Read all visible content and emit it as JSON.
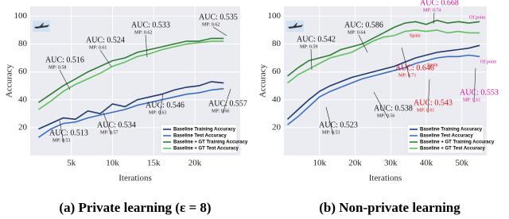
{
  "chart_data": [
    {
      "type": "line",
      "caption": "(a) Private learning (ε = 8)",
      "xlabel": "Iterations",
      "ylabel": "Accuracy",
      "xlim": [
        0,
        25500
      ],
      "ylim": [
        0,
        107
      ],
      "xticks": [
        {
          "value": 5000,
          "label": "5k"
        },
        {
          "value": 10000,
          "label": "10k"
        },
        {
          "value": 15000,
          "label": "15k"
        },
        {
          "value": 20000,
          "label": "20k"
        }
      ],
      "yticks": [
        20,
        40,
        60,
        80,
        100
      ],
      "grid": true,
      "legend": "lower right",
      "x": [
        1000,
        2500,
        4000,
        5500,
        7000,
        8500,
        10000,
        11500,
        13000,
        14500,
        16000,
        17500,
        19000,
        20500,
        22000,
        23500
      ],
      "series": [
        {
          "name": "Baseline Training Accuracy",
          "color": "#1f3a6e",
          "values": [
            19,
            23,
            27,
            26,
            32,
            30,
            37,
            35,
            40,
            42,
            44,
            47,
            49,
            50,
            53,
            52
          ]
        },
        {
          "name": "Baseline Test Accuracy",
          "color": "#3a6fc0",
          "values": [
            13,
            19,
            23,
            24,
            27,
            29,
            31,
            33,
            36,
            38,
            40,
            42,
            44,
            45,
            47,
            48
          ]
        },
        {
          "name": "Baseline + GT Training Accuracy",
          "color": "#2e7d32",
          "values": [
            38,
            44,
            50,
            55,
            60,
            64,
            68,
            70,
            74,
            76,
            78,
            80,
            82,
            82,
            84,
            84
          ]
        },
        {
          "name": "Baseline + GT Test Accuracy",
          "color": "#5fbf5f",
          "values": [
            33,
            39,
            46,
            51,
            55,
            59,
            64,
            67,
            71,
            73,
            76,
            78,
            80,
            81,
            82,
            82
          ]
        }
      ],
      "annotations": [
        {
          "text": "AUC: 0.516",
          "sub": "MP: 0.58",
          "color": "#111111"
        },
        {
          "text": "AUC: 0.524",
          "sub": "MP: 0.61",
          "color": "#111111"
        },
        {
          "text": "AUC: 0.533",
          "sub": "MP: 0.62",
          "color": "#111111"
        },
        {
          "text": "AUC: 0.535",
          "sub": "MP: 0.62",
          "color": "#111111"
        },
        {
          "text": "AUC: 0.513",
          "sub": "MP: 0.53",
          "color": "#111111"
        },
        {
          "text": "AUC: 0.534",
          "sub": "MP: 0.57",
          "color": "#111111"
        },
        {
          "text": "AUC: 0.546",
          "sub": "MP: 0.63",
          "color": "#111111"
        },
        {
          "text": "AUC: 0.557",
          "sub": "MP: 0.66",
          "color": "#111111"
        }
      ],
      "notes": []
    },
    {
      "type": "line",
      "caption": "(b) Non-private learning",
      "xlabel": "Iterations",
      "ylabel": "Accuracy",
      "xlim": [
        0,
        57000
      ],
      "ylim": [
        0,
        107
      ],
      "xticks": [
        {
          "value": 10000,
          "label": "10k"
        },
        {
          "value": 20000,
          "label": "20k"
        },
        {
          "value": 30000,
          "label": "30k"
        },
        {
          "value": 40000,
          "label": "40k"
        },
        {
          "value": 50000,
          "label": "50k"
        }
      ],
      "yticks": [
        20,
        40,
        60,
        80,
        100
      ],
      "grid": true,
      "legend": "lower right",
      "x": [
        1000,
        4000,
        7000,
        10000,
        13000,
        16000,
        19000,
        22000,
        25000,
        28000,
        31000,
        34000,
        37000,
        40000,
        43000,
        46000,
        49000,
        52000,
        55000
      ],
      "series": [
        {
          "name": "Baseline Training Accuracy",
          "color": "#1f3a6e",
          "values": [
            26,
            33,
            40,
            46,
            50,
            53,
            56,
            58,
            60,
            62,
            64,
            67,
            70,
            72,
            74,
            75,
            76,
            77,
            79
          ]
        },
        {
          "name": "Baseline Test Accuracy",
          "color": "#3a6fc0",
          "values": [
            22,
            28,
            35,
            42,
            46,
            49,
            52,
            55,
            57,
            59,
            61,
            63,
            66,
            68,
            70,
            71,
            71,
            72,
            71
          ]
        },
        {
          "name": "Baseline + GT Training Accuracy",
          "color": "#2e7d32",
          "values": [
            57,
            63,
            68,
            70,
            72,
            76,
            78,
            80,
            84,
            88,
            92,
            95,
            96,
            94,
            97,
            95,
            96,
            95,
            96
          ]
        },
        {
          "name": "Baseline + GT Test Accuracy",
          "color": "#5fbf5f",
          "values": [
            52,
            58,
            62,
            66,
            70,
            72,
            74,
            78,
            82,
            85,
            86,
            89,
            90,
            89,
            90,
            88,
            89,
            88,
            88
          ]
        }
      ],
      "annotations": [
        {
          "text": "AUC: 0.542",
          "sub": "MP: 0.59",
          "color": "#111111"
        },
        {
          "text": "AUC: 0.586",
          "sub": "MP: 0.64",
          "color": "#111111"
        },
        {
          "text": "AUC: 0.668",
          "sub": "MP: 0.74",
          "color": "#d4109a"
        },
        {
          "text": "AUC: 0.646",
          "sub": "MP: 0.71",
          "color": "#e01010"
        },
        {
          "text": "AUC: 0.543",
          "sub": "MP: 0.61",
          "color": "#e01010"
        },
        {
          "text": "AUC: 0.553",
          "sub": "MP: 0.61",
          "color": "#d4109a"
        },
        {
          "text": "AUC: 0.538",
          "sub": "MP: 0.56",
          "color": "#111111"
        },
        {
          "text": "AUC: 0.523",
          "sub": "MP: 0.53",
          "color": "#111111"
        }
      ],
      "notes": [
        {
          "text": "Spain",
          "color": "#e01010"
        },
        {
          "text": "Of point",
          "color": "#d4109a"
        },
        {
          "text": "Spain",
          "color": "#e01010"
        },
        {
          "text": "Of point",
          "color": "#d4109a"
        }
      ]
    }
  ]
}
